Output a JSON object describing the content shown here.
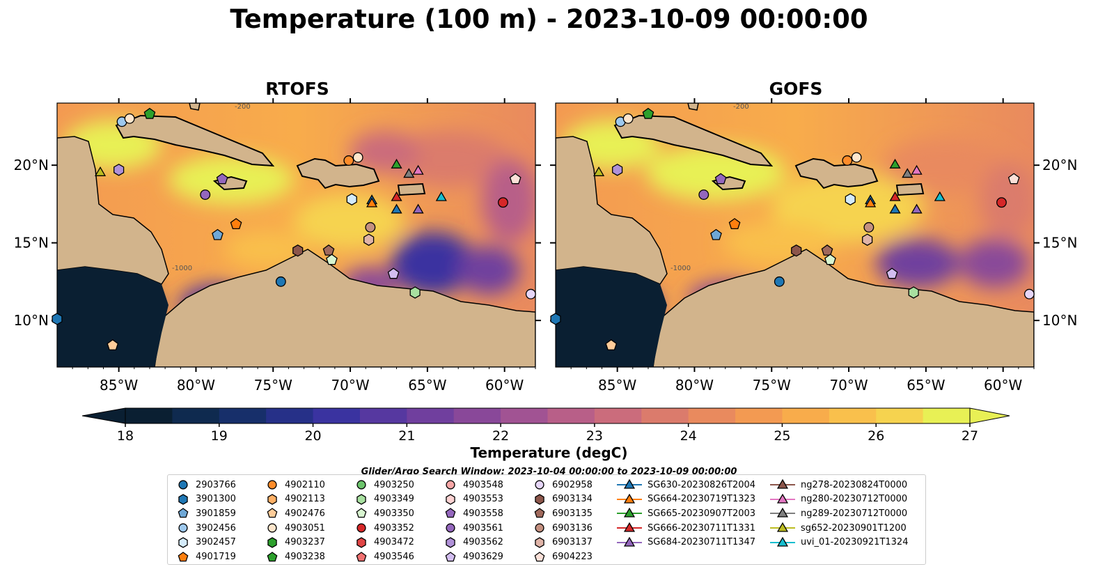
{
  "title": "Temperature (100 m) - 2023-10-09 00:00:00",
  "panels": [
    {
      "id": "rtofs",
      "title": "RTOFS"
    },
    {
      "id": "gofs",
      "title": "GOFS"
    }
  ],
  "colors": {
    "land": "#d2b48c",
    "shelf": "#9ab8e0",
    "colormap": [
      "#0a1f32",
      "#0f2a4f",
      "#172f6a",
      "#263088",
      "#3a33a0",
      "#5638a0",
      "#703f9e",
      "#894899",
      "#a15393",
      "#b85f88",
      "#cb6c7c",
      "#db7b6c",
      "#e98a5e",
      "#f39a52",
      "#f8ac4b",
      "#f9c04c",
      "#f6d34f",
      "#e8f055"
    ]
  },
  "chart_data": {
    "type": "heatmap",
    "variable": "Temperature (100 m)",
    "time": "2023-10-09 00:00:00",
    "x_ticks": [
      "85°W",
      "80°W",
      "75°W",
      "70°W",
      "65°W",
      "60°W"
    ],
    "y_ticks": [
      "20°N",
      "15°N",
      "10°N"
    ],
    "xlim": [
      -89,
      -58
    ],
    "ylim": [
      7,
      24
    ],
    "contour_labels": [
      "-1000",
      "-200"
    ],
    "colorbar": {
      "label": "Temperature (degC)",
      "ticks": [
        "18",
        "19",
        "20",
        "21",
        "22",
        "23",
        "24",
        "25",
        "26",
        "27"
      ],
      "range": [
        18,
        27
      ],
      "extend": "both"
    }
  },
  "legend": {
    "title": "Glider/Argo Search Window: 2023-10-04 00:00:00 to 2023-10-09 00:00:00",
    "columns": [
      [
        {
          "label": "2903766",
          "color": "#1f77b4",
          "marker": "circle"
        },
        {
          "label": "3901300",
          "color": "#1f77b4",
          "marker": "hexagon"
        },
        {
          "label": "3901859",
          "color": "#6fa8d6",
          "marker": "pentagon"
        },
        {
          "label": "3902456",
          "color": "#9ec9ee",
          "marker": "circle"
        },
        {
          "label": "3902457",
          "color": "#d4ebfb",
          "marker": "hexagon"
        },
        {
          "label": "4901719",
          "color": "#ff7f0e",
          "marker": "pentagon"
        }
      ],
      [
        {
          "label": "4902110",
          "color": "#ff8c2a",
          "marker": "circle"
        },
        {
          "label": "4902113",
          "color": "#ffb066",
          "marker": "hexagon"
        },
        {
          "label": "4902476",
          "color": "#ffcc99",
          "marker": "pentagon"
        },
        {
          "label": "4903051",
          "color": "#ffe6cc",
          "marker": "circle"
        },
        {
          "label": "4903237",
          "color": "#2ca02c",
          "marker": "hexagon"
        },
        {
          "label": "4903238",
          "color": "#2ca02c",
          "marker": "pentagon"
        }
      ],
      [
        {
          "label": "4903250",
          "color": "#6cc46c",
          "marker": "circle"
        },
        {
          "label": "4903349",
          "color": "#a8e0a0",
          "marker": "hexagon"
        },
        {
          "label": "4903350",
          "color": "#d8f5d0",
          "marker": "pentagon"
        },
        {
          "label": "4903352",
          "color": "#d62728",
          "marker": "circle"
        },
        {
          "label": "4903472",
          "color": "#e04545",
          "marker": "hexagon"
        },
        {
          "label": "4903546",
          "color": "#f07070",
          "marker": "pentagon"
        }
      ],
      [
        {
          "label": "4903548",
          "color": "#f7a6a6",
          "marker": "circle"
        },
        {
          "label": "4903553",
          "color": "#fcd2d2",
          "marker": "hexagon"
        },
        {
          "label": "4903558",
          "color": "#9467bd",
          "marker": "pentagon"
        },
        {
          "label": "4903561",
          "color": "#9467bd",
          "marker": "circle"
        },
        {
          "label": "4903562",
          "color": "#b091d8",
          "marker": "hexagon"
        },
        {
          "label": "4903629",
          "color": "#d2bdf0",
          "marker": "pentagon"
        }
      ],
      [
        {
          "label": "6902958",
          "color": "#e6d6f8",
          "marker": "circle"
        },
        {
          "label": "6903134",
          "color": "#8c564b",
          "marker": "hexagon"
        },
        {
          "label": "6903135",
          "color": "#a0695c",
          "marker": "pentagon"
        },
        {
          "label": "6903136",
          "color": "#c49080",
          "marker": "circle"
        },
        {
          "label": "6903137",
          "color": "#e0b4a8",
          "marker": "hexagon"
        },
        {
          "label": "6904223",
          "color": "#fbe0d8",
          "marker": "pentagon"
        }
      ],
      [
        {
          "label": "SG630-20230826T2004",
          "color": "#1f77b4",
          "marker": "triangle"
        },
        {
          "label": "SG664-20230719T1323",
          "color": "#ff7f0e",
          "marker": "triangle"
        },
        {
          "label": "SG665-20230907T2003",
          "color": "#2ca02c",
          "marker": "triangle"
        },
        {
          "label": "SG666-20230711T1331",
          "color": "#d62728",
          "marker": "triangle"
        },
        {
          "label": "SG684-20230711T1347",
          "color": "#9467bd",
          "marker": "triangle"
        }
      ],
      [
        {
          "label": "ng278-20230824T0000",
          "color": "#8c564b",
          "marker": "triangle"
        },
        {
          "label": "ng280-20230712T0000",
          "color": "#e377c2",
          "marker": "triangle"
        },
        {
          "label": "ng289-20230712T0000",
          "color": "#7f7f7f",
          "marker": "triangle"
        },
        {
          "label": "sg652-20230901T1200",
          "color": "#bcbd22",
          "marker": "triangle"
        },
        {
          "label": "uvi_01-20230921T1324",
          "color": "#17becf",
          "marker": "triangle"
        }
      ]
    ]
  }
}
